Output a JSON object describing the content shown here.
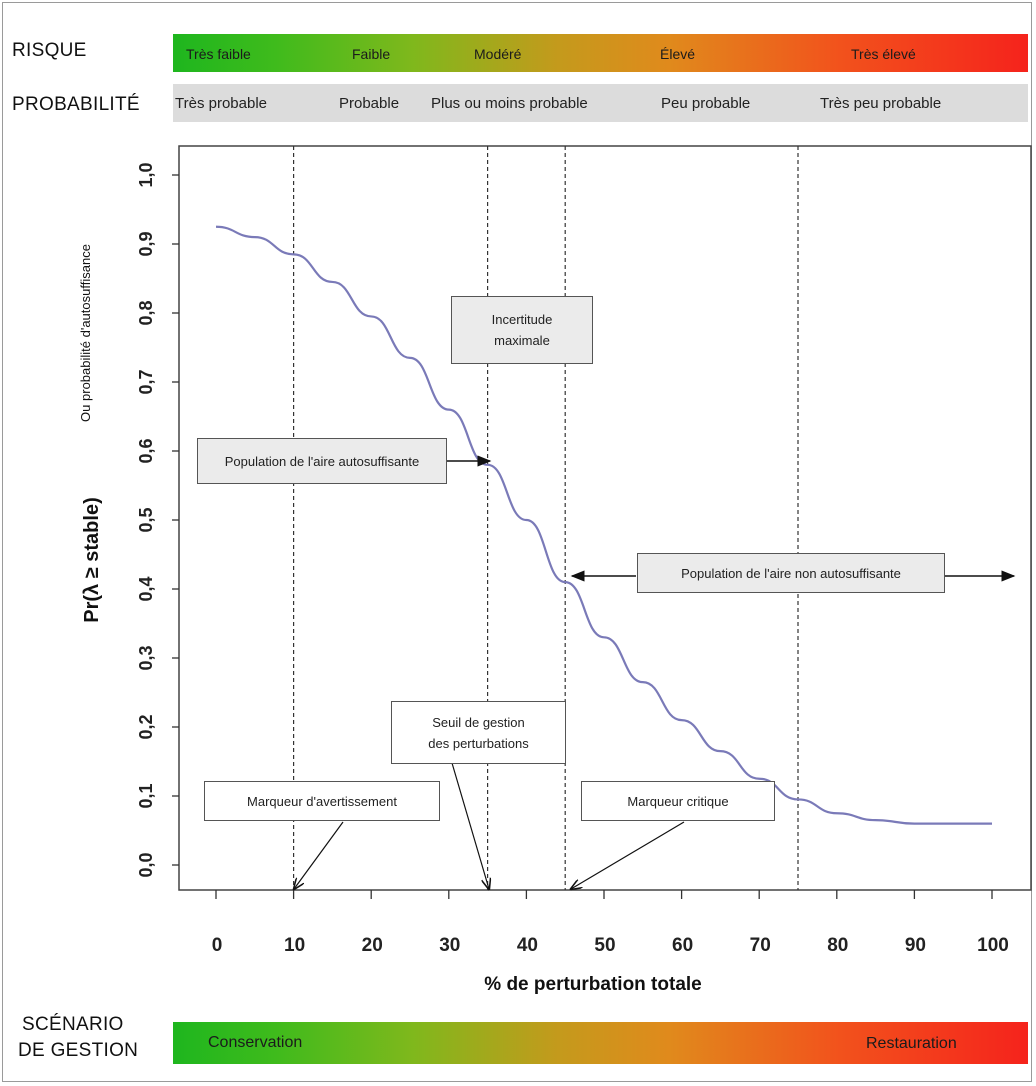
{
  "header": {
    "risk_label": "RISQUE",
    "probability_label": "PROBABILITÉ",
    "risk_levels": [
      "Très faible",
      "Faible",
      "Modéré",
      "Élevé",
      "Très élevé"
    ],
    "probability_levels": [
      "Très probable",
      "Probable",
      "Plus ou moins probable",
      "Peu probable",
      "Très peu probable"
    ]
  },
  "footer": {
    "scenario_label_line1": "SCÉNARIO",
    "scenario_label_line2": "DE GESTION",
    "conservation": "Conservation",
    "restoration": "Restauration"
  },
  "annotations": {
    "uncertainty": "Incertitude\nmaximale",
    "self_sustaining": "Population de l'aire autosuffisante",
    "not_self_sustaining": "Population de l'aire non autosuffisante",
    "management_threshold": "Seuil de gestion\ndes perturbations",
    "warning_marker": "Marqueur d'avertissement",
    "critical_marker": "Marqueur critique"
  },
  "colors": {
    "curve": "#7a7ab8",
    "good": "#1eb61e",
    "bad": "#f5231c",
    "probability_band": "#dcdcdc"
  },
  "chart_data": {
    "type": "line",
    "title": "",
    "xlabel": "% de perturbation totale",
    "ylabel": "Pr(λ ≥ stable)",
    "ylabel_secondary": "Ou probabilité d'autosuffisance",
    "xlim": [
      0,
      100
    ],
    "ylim": [
      0,
      1.0
    ],
    "x_ticks": [
      "0",
      "10",
      "20",
      "30",
      "40",
      "50",
      "60",
      "70",
      "80",
      "90",
      "100"
    ],
    "y_ticks": [
      "0,0",
      "0,1",
      "0,2",
      "0,3",
      "0,4",
      "0,5",
      "0,6",
      "0,7",
      "0,8",
      "0,9",
      "1,0"
    ],
    "grid": false,
    "vertical_reference_lines": [
      10,
      35,
      45,
      75
    ],
    "series": [
      {
        "x": [
          0,
          5,
          10,
          15,
          20,
          25,
          30,
          35,
          40,
          45,
          50,
          55,
          60,
          65,
          70,
          75,
          80,
          85,
          90,
          95,
          100
        ],
        "y": [
          0.925,
          0.91,
          0.885,
          0.845,
          0.795,
          0.735,
          0.66,
          0.58,
          0.5,
          0.41,
          0.33,
          0.265,
          0.21,
          0.165,
          0.125,
          0.095,
          0.075,
          0.065,
          0.06,
          0.06,
          0.06
        ]
      }
    ]
  }
}
